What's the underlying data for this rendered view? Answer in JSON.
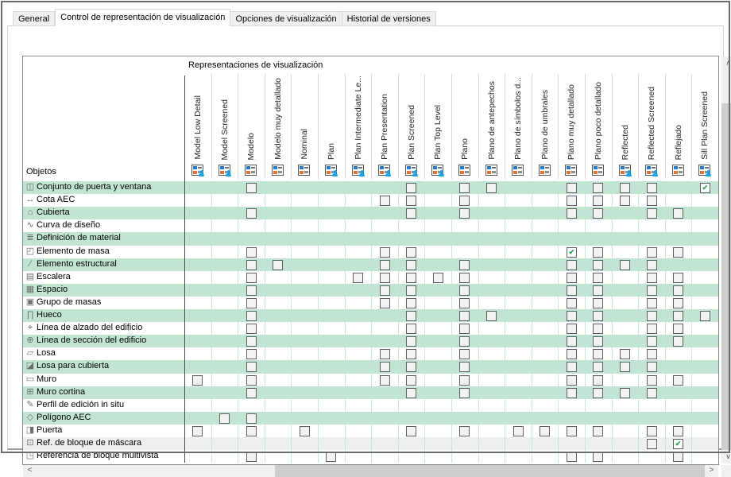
{
  "tabs": [
    {
      "label": "General",
      "active": false
    },
    {
      "label": "Control de representación de visualización",
      "active": true
    },
    {
      "label": "Opciones de visualización",
      "active": false
    },
    {
      "label": "Historial de versiones",
      "active": false
    }
  ],
  "grid": {
    "group_header": "Representaciones de visualización",
    "objects_label": "Objetos",
    "columns": [
      {
        "label": "Model Low Detail",
        "managed": true
      },
      {
        "label": "Model Screened",
        "managed": true
      },
      {
        "label": "Modelo",
        "managed": false
      },
      {
        "label": "Modelo muy detallado",
        "managed": false
      },
      {
        "label": "Nominal",
        "managed": false
      },
      {
        "label": "Plan",
        "managed": true
      },
      {
        "label": "Plan Intermediate Le...",
        "managed": true
      },
      {
        "label": "Plan Presentation",
        "managed": true
      },
      {
        "label": "Plan Screened",
        "managed": true
      },
      {
        "label": "Plan Top Level",
        "managed": true
      },
      {
        "label": "Plano",
        "managed": false
      },
      {
        "label": "Plano de antepechos",
        "managed": false
      },
      {
        "label": "Plano de símbolos d...",
        "managed": false
      },
      {
        "label": "Plano de umbrales",
        "managed": false
      },
      {
        "label": "Plano muy detallado",
        "managed": false
      },
      {
        "label": "Plano poco detallado",
        "managed": false
      },
      {
        "label": "Reflected",
        "managed": true
      },
      {
        "label": "Reflected Screened",
        "managed": true
      },
      {
        "label": "Reflejado",
        "managed": false
      },
      {
        "label": "Sill Plan Screened",
        "managed": true
      }
    ],
    "rows": [
      {
        "label": "Conjunto de puerta y ventana",
        "icon": "door-window-assembly-icon",
        "glyph": "◫",
        "shade": "green",
        "cells": "..o.....o.oo..oooo.x"
      },
      {
        "label": "Cota AEC",
        "icon": "aec-dimension-icon",
        "glyph": "↔",
        "shade": "white",
        "cells": ".......oo.o...oooo.."
      },
      {
        "label": "Cubierta",
        "icon": "roof-icon",
        "glyph": "⌂",
        "shade": "green",
        "cells": "..o.....o.o...oo.oo."
      },
      {
        "label": "Curva de diseño",
        "icon": "design-curve-icon",
        "glyph": "∿",
        "shade": "white",
        "cells": "...................."
      },
      {
        "label": "Definición de material",
        "icon": "material-definition-icon",
        "glyph": "≣",
        "shade": "green",
        "cells": "...................."
      },
      {
        "label": "Elemento de masa",
        "icon": "mass-element-icon",
        "glyph": "◰",
        "shade": "white",
        "cells": "..o....oo.....xo.oo."
      },
      {
        "label": "Elemento estructural",
        "icon": "structural-member-icon",
        "glyph": "∕",
        "shade": "green",
        "cells": "..oo...oo.o...oooo.."
      },
      {
        "label": "Escalera",
        "icon": "stair-icon",
        "glyph": "▤",
        "shade": "white",
        "cells": "..o...ooooo...oo.oo."
      },
      {
        "label": "Espacio",
        "icon": "space-icon",
        "glyph": "▦",
        "shade": "green",
        "cells": "..o....oo.o...oo.oo."
      },
      {
        "label": "Grupo de masas",
        "icon": "mass-group-icon",
        "glyph": "▣",
        "shade": "white",
        "cells": "..o....oo.o...oo.oo."
      },
      {
        "label": "Hueco",
        "icon": "opening-icon",
        "glyph": "∏",
        "shade": "green",
        "cells": "..o.....o.oo..oo.ooo"
      },
      {
        "label": "Línea de alzado del edificio",
        "icon": "elevation-line-icon",
        "glyph": "⌖",
        "shade": "white",
        "cells": "..o.....o.o...oo.oo."
      },
      {
        "label": "Línea de sección del edificio",
        "icon": "section-line-icon",
        "glyph": "⊕",
        "shade": "green",
        "cells": "..o.....o.o...oo.oo."
      },
      {
        "label": "Losa",
        "icon": "slab-icon",
        "glyph": "▱",
        "shade": "white",
        "cells": "..o....oo.o...oooo.."
      },
      {
        "label": "Losa para cubierta",
        "icon": "roof-slab-icon",
        "glyph": "◪",
        "shade": "green",
        "cells": "..o....oo.o...oooo.."
      },
      {
        "label": "Muro",
        "icon": "wall-icon",
        "glyph": "▭",
        "shade": "white",
        "cells": "o.o....oo.o...oo.oo."
      },
      {
        "label": "Muro cortina",
        "icon": "curtain-wall-icon",
        "glyph": "⊞",
        "shade": "green",
        "cells": "..o.....o.o...oooo.."
      },
      {
        "label": "Perfil de edición in situ",
        "icon": "inplace-edit-profile-icon",
        "glyph": "✎",
        "shade": "white",
        "cells": "...................."
      },
      {
        "label": "Polígono AEC",
        "icon": "aec-polygon-icon",
        "glyph": "◇",
        "shade": "green",
        "cells": ".oo................."
      },
      {
        "label": "Puerta",
        "icon": "door-icon",
        "glyph": "◨",
        "shade": "white",
        "cells": "o.o.o...o.o.oooo.oo."
      },
      {
        "label": "Ref. de bloque de máscara",
        "icon": "mask-block-ref-icon",
        "glyph": "⊡",
        "shade": "gray",
        "cells": ".................ox."
      },
      {
        "label": "Referencia de bloque multivista",
        "icon": "multiview-block-ref-icon",
        "glyph": "◳",
        "shade": "white",
        "cells": "..o..o........oo..o."
      }
    ]
  },
  "icons": {
    "check": "✔",
    "scroll_up": "∧",
    "scroll_down": "∨",
    "scroll_left": "<",
    "scroll_right": ">"
  },
  "colors": {
    "row_green": "#c2e5d3",
    "row_white": "#ffffff",
    "row_gray": "#efefef",
    "separator_mint": "#c9e8d8",
    "check_green": "#2aa24f",
    "header_icon_blue": "#1f7ad0",
    "header_icon_orange": "#e0733a",
    "person_blue": "#18a3e8"
  }
}
